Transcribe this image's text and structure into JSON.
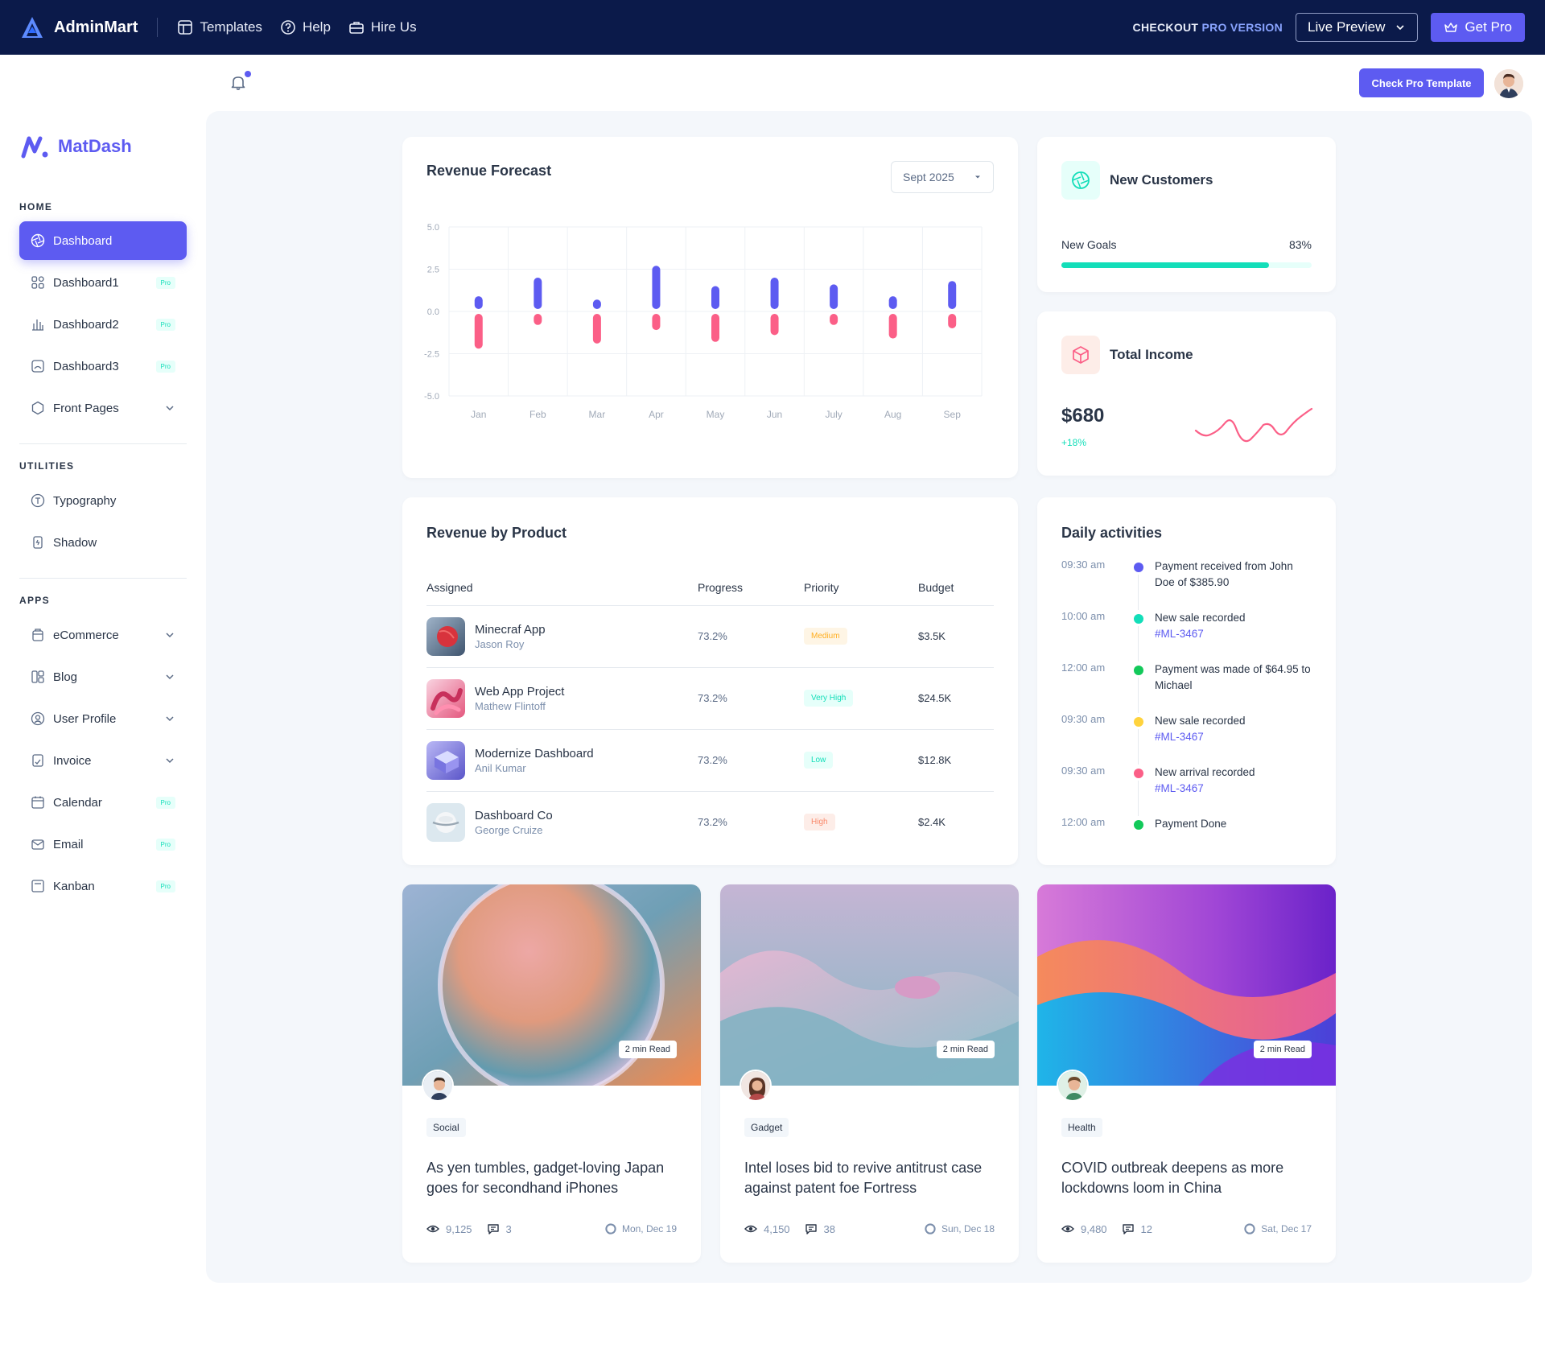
{
  "topbar": {
    "brand": "AdminMart",
    "links": [
      "Templates",
      "Help",
      "Hire Us"
    ],
    "checkout_prefix": "CHECKOUT",
    "checkout_pro": "PRO VERSION",
    "live_preview": "Live Preview",
    "get_pro": "Get Pro"
  },
  "header": {
    "check_pro": "Check Pro Template"
  },
  "sidebar": {
    "brand": "MatDash",
    "sections": [
      "HOME",
      "UTILITIES",
      "APPS"
    ],
    "items": [
      {
        "label": "Dashboard",
        "icon": "aperture-icon"
      },
      {
        "label": "Dashboard1",
        "icon": "layout-grid-icon",
        "badge": "Pro"
      },
      {
        "label": "Dashboard2",
        "icon": "chart-bar-icon",
        "badge": "Pro"
      },
      {
        "label": "Dashboard3",
        "icon": "chart-pie-icon",
        "badge": "Pro"
      },
      {
        "label": "Front Pages",
        "icon": "hexagon-icon"
      },
      {
        "label": "Typography",
        "icon": "typography-icon"
      },
      {
        "label": "Shadow",
        "icon": "shadow-icon"
      },
      {
        "label": "eCommerce",
        "icon": "basket-icon"
      },
      {
        "label": "Blog",
        "icon": "blog-icon"
      },
      {
        "label": "User Profile",
        "icon": "user-circle-icon"
      },
      {
        "label": "Invoice",
        "icon": "invoice-icon"
      },
      {
        "label": "Calendar",
        "icon": "calendar-icon",
        "badge": "Pro"
      },
      {
        "label": "Email",
        "icon": "mail-icon",
        "badge": "Pro"
      },
      {
        "label": "Kanban",
        "icon": "kanban-icon",
        "badge": "Pro"
      }
    ]
  },
  "revenue_forecast": {
    "title": "Revenue Forecast",
    "period": "Sept 2025"
  },
  "chart_data": {
    "type": "bar",
    "categories": [
      "Jan",
      "Feb",
      "Mar",
      "Apr",
      "May",
      "Jun",
      "July",
      "Aug",
      "Sep"
    ],
    "series": [
      {
        "values": [
          0.9,
          2.0,
          0.7,
          2.7,
          1.5,
          2.0,
          1.6,
          0.9,
          1.8
        ],
        "color": "#5d5bf1"
      },
      {
        "values": [
          -2.2,
          -0.8,
          -1.9,
          -1.1,
          -1.8,
          -1.4,
          -0.8,
          -1.6,
          -1.0
        ],
        "color": "#fb5f87"
      }
    ],
    "ylim": [
      -5.0,
      5.0
    ],
    "yticks": [
      "5.0",
      "2.5",
      "0.0",
      "-2.5",
      "-5.0"
    ],
    "grid": true
  },
  "new_customers": {
    "title": "New Customers",
    "goal_label": "New Goals",
    "goal_value": "83%",
    "goal_fraction": 0.83
  },
  "total_income": {
    "title": "Total Income",
    "amount": "$680",
    "change": "+18%"
  },
  "revenue_by_product": {
    "title": "Revenue by Product",
    "columns": [
      "Assigned",
      "Progress",
      "Priority",
      "Budget"
    ],
    "rows": [
      {
        "product": "Minecraf App",
        "person": "Jason Roy",
        "progress": "73.2%",
        "priority": "Medium",
        "budget": "$3.5K",
        "prio_color": "#ffae1f",
        "prio_bg": "#fef5e5"
      },
      {
        "product": "Web App Project",
        "person": "Mathew Flintoff",
        "progress": "73.2%",
        "priority": "Very High",
        "budget": "$24.5K",
        "prio_color": "#13deb9",
        "prio_bg": "#e6fffa"
      },
      {
        "product": "Modernize Dashboard",
        "person": "Anil Kumar",
        "progress": "73.2%",
        "priority": "Low",
        "budget": "$12.8K",
        "prio_color": "#13deb9",
        "prio_bg": "#e6fffa"
      },
      {
        "product": "Dashboard Co",
        "person": "George Cruize",
        "progress": "73.2%",
        "priority": "High",
        "budget": "$2.4K",
        "prio_color": "#fa896b",
        "prio_bg": "#fdede8"
      }
    ]
  },
  "daily_activities": {
    "title": "Daily activities",
    "items": [
      {
        "time": "09:30 am",
        "text": "Payment received from John Doe of $385.90",
        "link": "",
        "color": "#5d5bf1"
      },
      {
        "time": "10:00 am",
        "text": "New sale recorded",
        "link": "#ML-3467",
        "color": "#13deb9"
      },
      {
        "time": "12:00 am",
        "text": "Payment was made of $64.95 to Michael",
        "link": "",
        "color": "#13c95a"
      },
      {
        "time": "09:30 am",
        "text": "New sale recorded",
        "link": "#ML-3467",
        "color": "#ffd33d"
      },
      {
        "time": "09:30 am",
        "text": "New arrival recorded",
        "link": "#ML-3467",
        "color": "#fb5f87"
      },
      {
        "time": "12:00 am",
        "text": "Payment Done",
        "link": "",
        "color": "#13c95a"
      }
    ]
  },
  "blog_posts": [
    {
      "read": "2 min Read",
      "tag": "Social",
      "title": "As yen tumbles, gadget-loving Japan goes for secondhand iPhones",
      "views": "9,125",
      "comments": "3",
      "date": "Mon, Dec 19"
    },
    {
      "read": "2 min Read",
      "tag": "Gadget",
      "title": "Intel loses bid to revive antitrust case against patent foe Fortress",
      "views": "4,150",
      "comments": "38",
      "date": "Sun, Dec 18"
    },
    {
      "read": "2 min Read",
      "tag": "Health",
      "title": "COVID outbreak deepens as more lockdowns loom in China",
      "views": "9,480",
      "comments": "12",
      "date": "Sat, Dec 17"
    }
  ]
}
